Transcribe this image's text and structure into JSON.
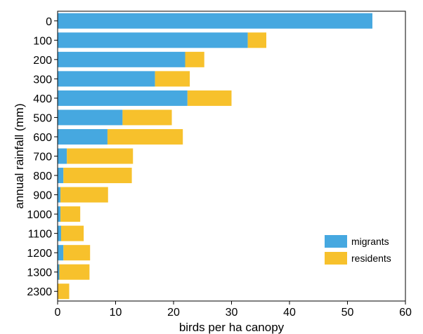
{
  "chart_data": {
    "type": "bar",
    "orientation": "horizontal",
    "stacked": true,
    "categories": [
      "0",
      "100",
      "200",
      "300",
      "400",
      "500",
      "600",
      "700",
      "800",
      "900",
      "1000",
      "1100",
      "1200",
      "1300",
      "2300"
    ],
    "series": [
      {
        "name": "migrants",
        "color": "#46a8e0",
        "values": [
          54.3,
          32.8,
          22.0,
          16.8,
          22.4,
          11.2,
          8.6,
          1.6,
          1.0,
          0.5,
          0.5,
          0.6,
          1.0,
          0.3,
          0.0
        ]
      },
      {
        "name": "residents",
        "color": "#f7c12c",
        "values": [
          0.0,
          3.2,
          3.3,
          6.0,
          7.6,
          8.5,
          13.0,
          11.4,
          11.8,
          8.2,
          3.4,
          3.9,
          4.6,
          5.2,
          2.0
        ]
      }
    ],
    "xlabel": "birds per ha canopy",
    "ylabel": "annual rainfall (mm)",
    "xlim": [
      0,
      60
    ],
    "xticks": [
      0,
      10,
      20,
      30,
      40,
      50,
      60
    ],
    "grid": false,
    "legend_position": "bottom-right"
  }
}
